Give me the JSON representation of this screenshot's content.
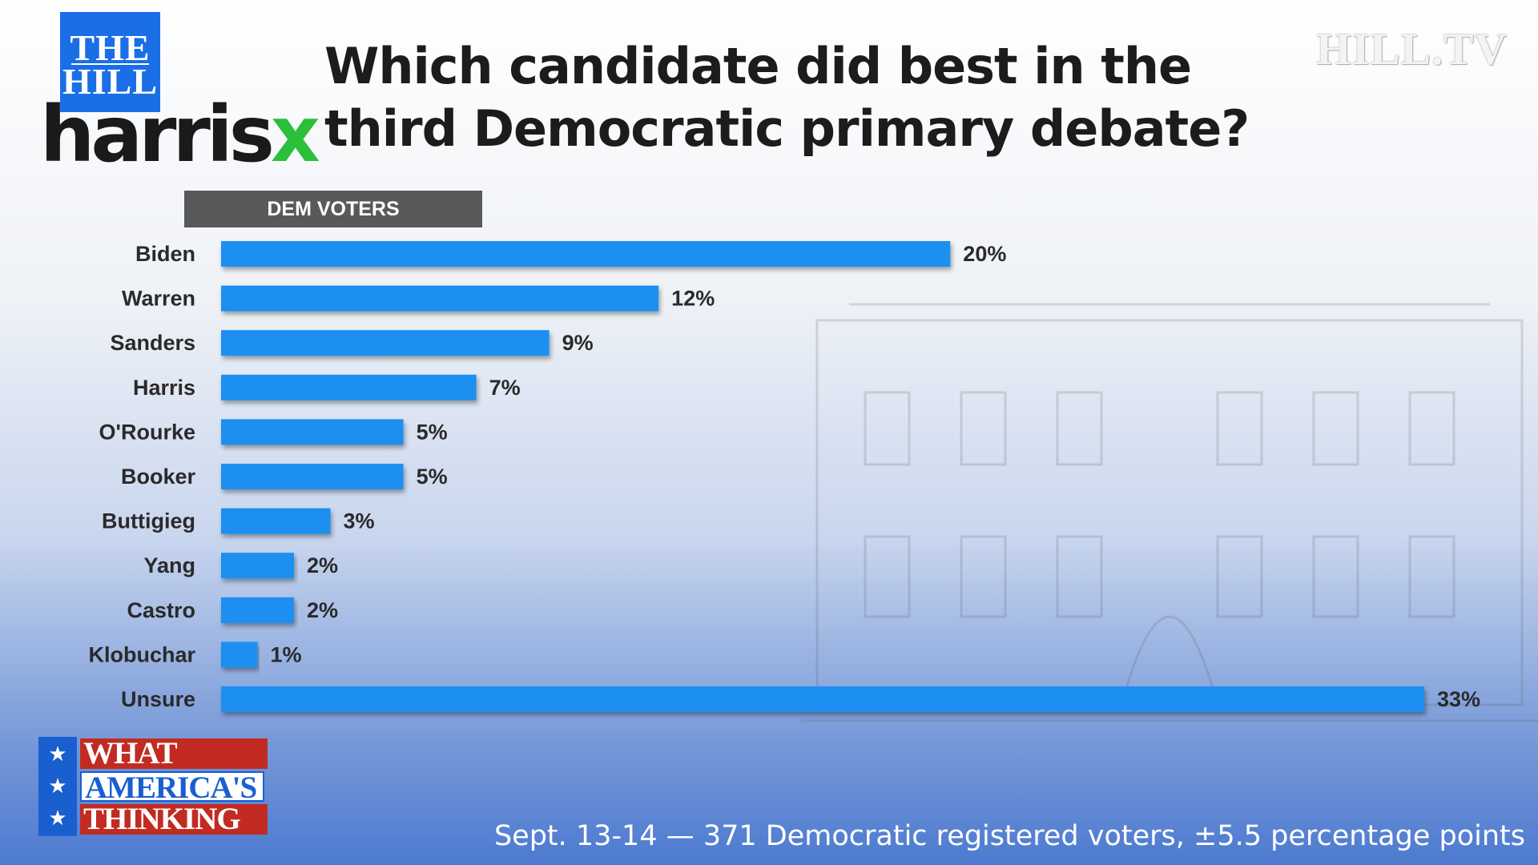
{
  "branding": {
    "hill_line1": "THE",
    "hill_line2": "HILL",
    "harrisx_main": "harris",
    "harrisx_x": "x",
    "hilltv": "HILL.TV",
    "wat_line1": "WHAT",
    "wat_line2": "AMERICA'S",
    "wat_line3": "THINKING",
    "star_glyph": "★"
  },
  "colors": {
    "bar": "#1a8ff0",
    "label_bg": "#58595b",
    "hill_blue": "#1a6fe6",
    "harrisx_green": "#2bbf3a"
  },
  "footnote": "Sept. 13-14 — 371 Democratic registered voters, ±5.5 percentage points",
  "chart_data": {
    "type": "bar",
    "orientation": "horizontal",
    "title": "Which candidate did best in the third Democratic primary debate?",
    "subgroup": "DEM VOTERS",
    "unit": "%",
    "categories": [
      "Biden",
      "Warren",
      "Sanders",
      "Harris",
      "O'Rourke",
      "Booker",
      "Buttigieg",
      "Yang",
      "Castro",
      "Klobuchar",
      "Unsure"
    ],
    "values": [
      20,
      12,
      9,
      7,
      5,
      5,
      3,
      2,
      2,
      1,
      33
    ],
    "xlim": [
      0,
      33
    ],
    "grid": false,
    "legend": "none"
  }
}
